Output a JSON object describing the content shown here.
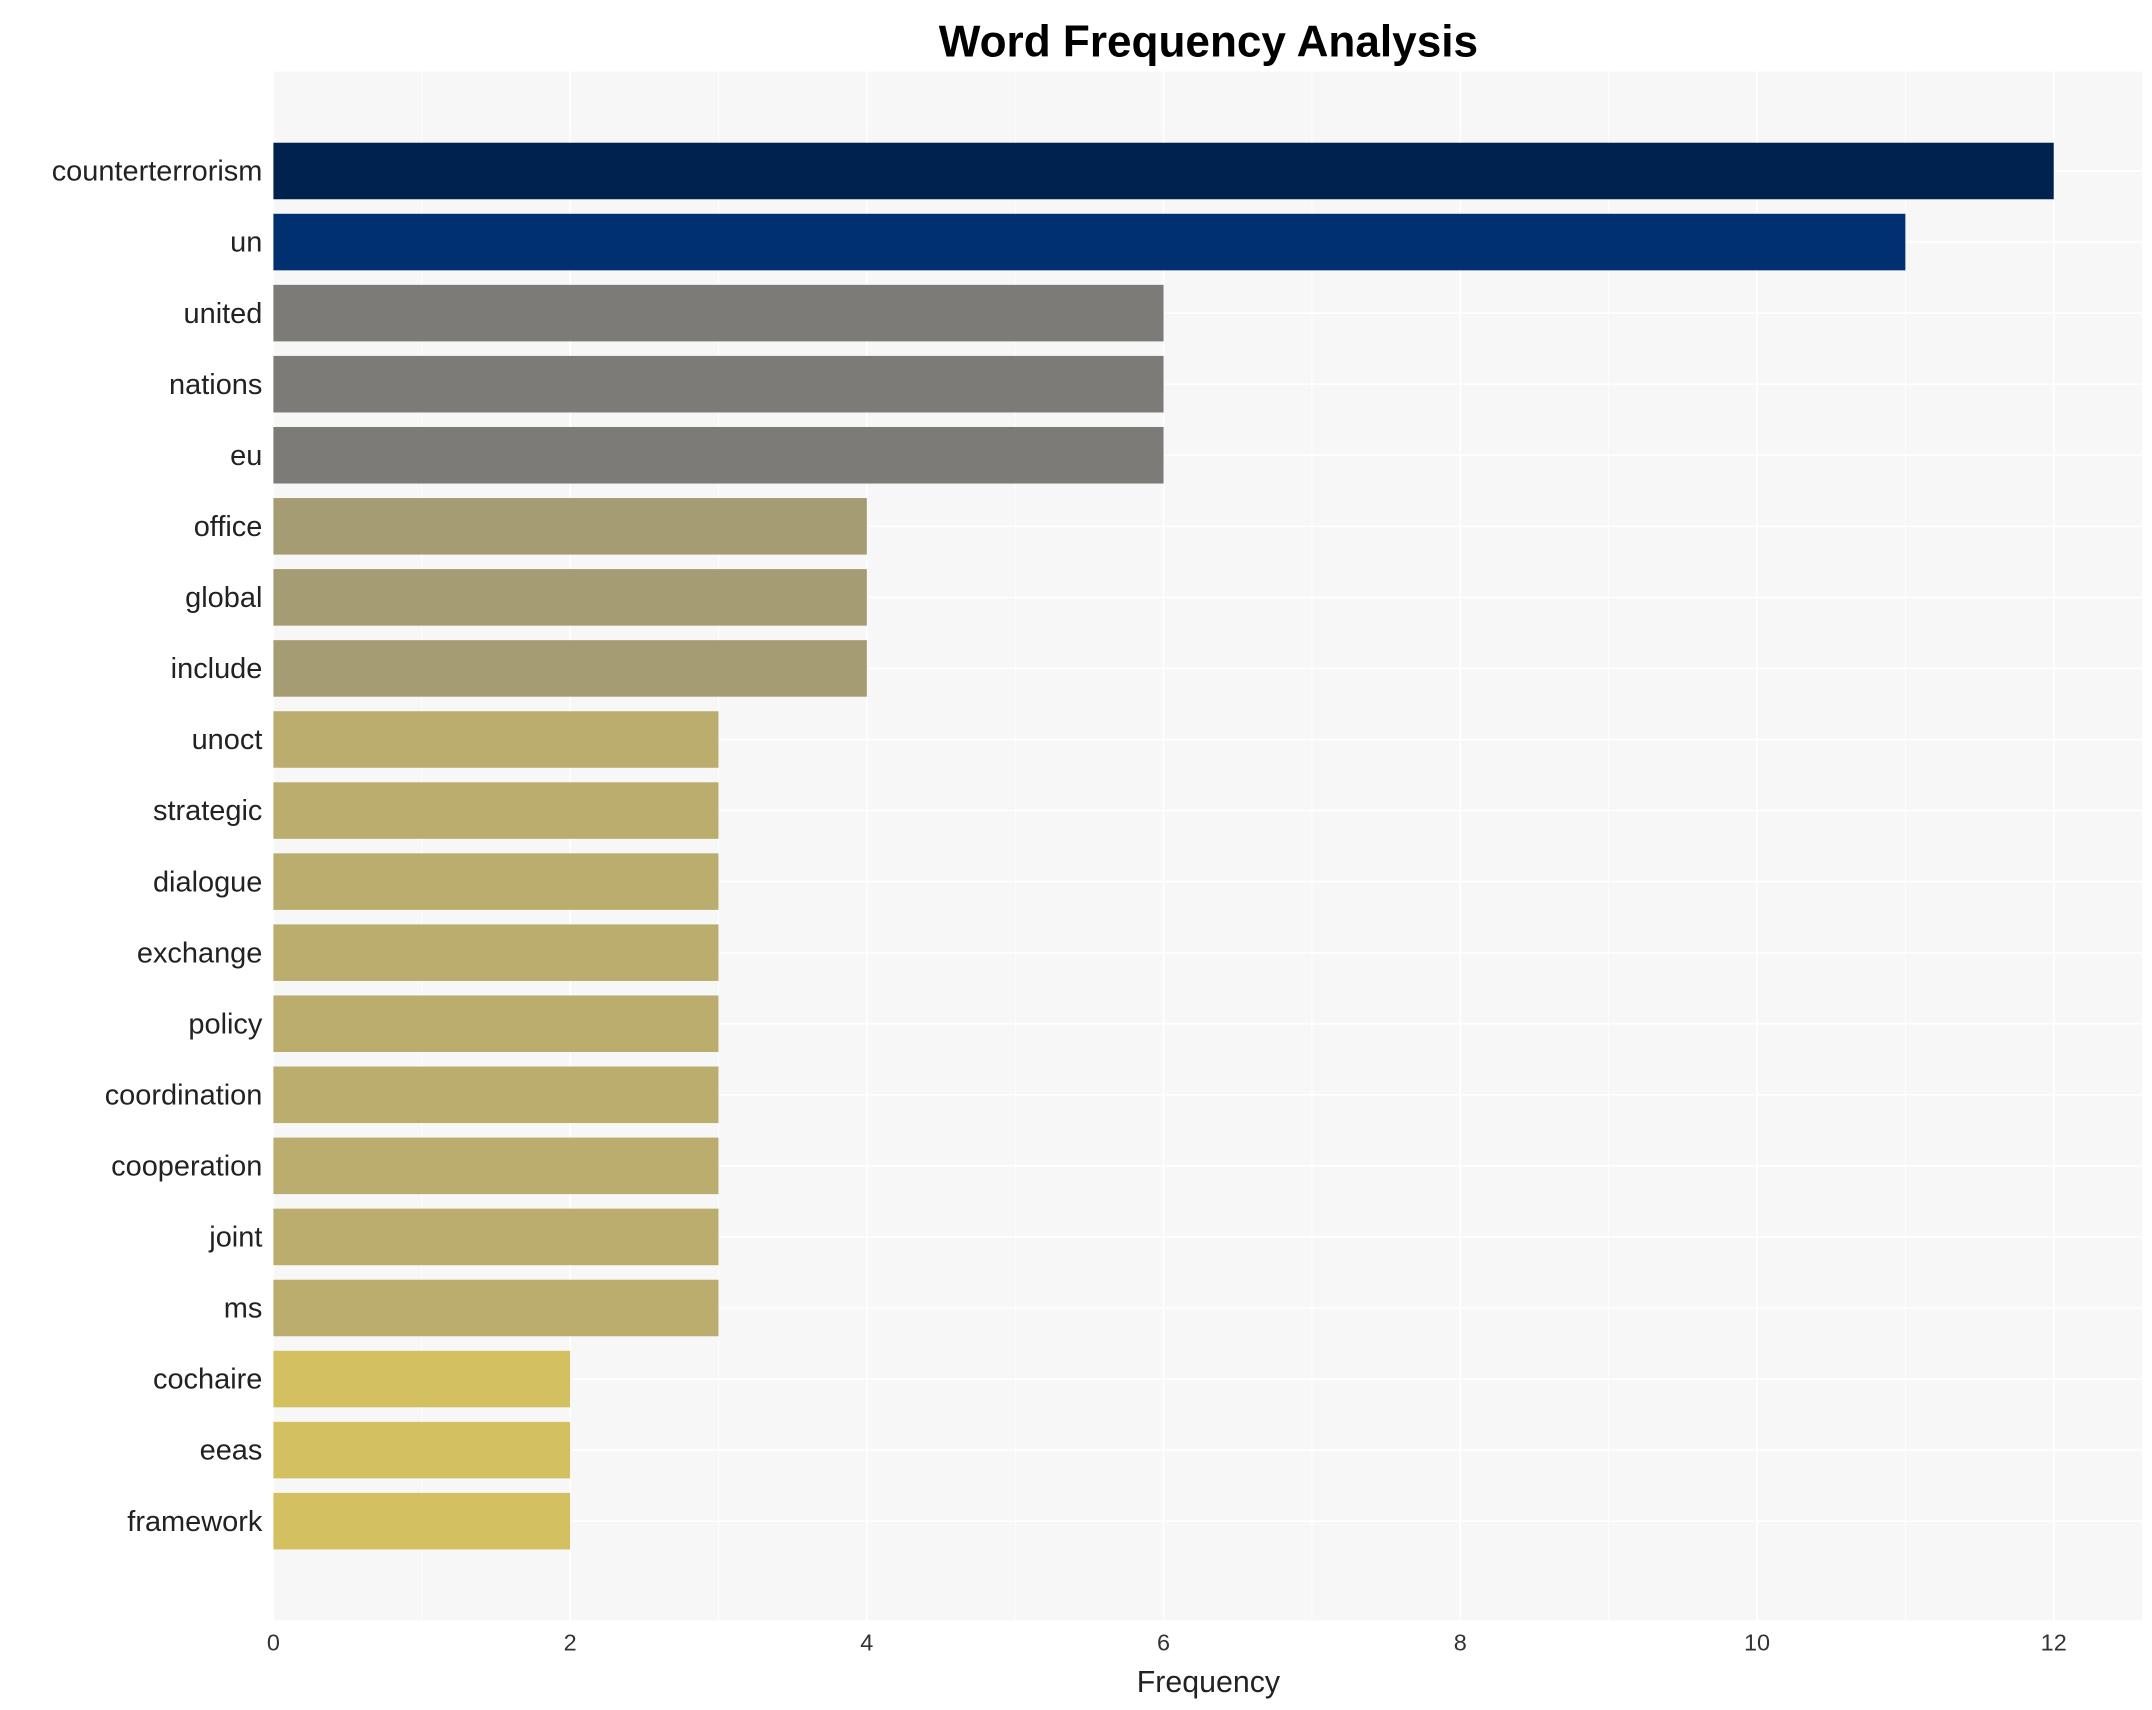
{
  "chart_data": {
    "type": "bar",
    "orientation": "horizontal",
    "title": "Word Frequency Analysis",
    "xlabel": "Frequency",
    "ylabel": "",
    "xlim": [
      0,
      12.6
    ],
    "xticks": [
      "0",
      "2",
      "4",
      "6",
      "8",
      "10",
      "12"
    ],
    "grid": true,
    "categories": [
      "counterterrorism",
      "un",
      "united",
      "nations",
      "eu",
      "office",
      "global",
      "include",
      "unoct",
      "strategic",
      "dialogue",
      "exchange",
      "policy",
      "coordination",
      "cooperation",
      "joint",
      "ms",
      "cochaire",
      "eeas",
      "framework"
    ],
    "values": [
      12,
      11,
      6,
      6,
      6,
      4,
      4,
      4,
      3,
      3,
      3,
      3,
      3,
      3,
      3,
      3,
      3,
      2,
      2,
      2
    ],
    "colors": [
      "#00224e",
      "#003070",
      "#7c7b78",
      "#7c7b78",
      "#7c7b78",
      "#a59c74",
      "#a59c74",
      "#a59c74",
      "#bbad6d",
      "#bbad6d",
      "#bbad6d",
      "#bbad6d",
      "#bbad6d",
      "#bbad6d",
      "#bbad6d",
      "#bbad6d",
      "#bbad6d",
      "#d3c060",
      "#d3c060",
      "#d3c060"
    ]
  }
}
